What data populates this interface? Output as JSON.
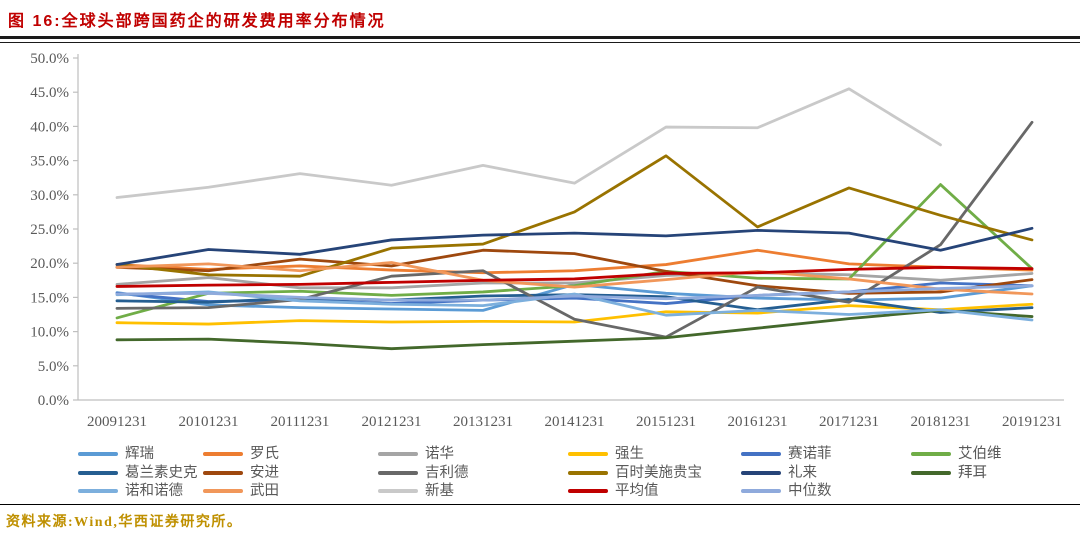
{
  "figure": {
    "title": "图 16:全球头部跨国药企的研发费用率分布情况"
  },
  "source": {
    "text": "资料来源:Wind,华西证券研究所。"
  },
  "colors": {
    "title": "#C00000",
    "source": "#BF9000",
    "axis": "#BFBFBF",
    "tick_label": "#595959",
    "rule": "#1a1a1a"
  },
  "chart_data": {
    "type": "line",
    "title": "全球头部跨国药企的研发费用率分布情况",
    "xlabel": "",
    "ylabel": "",
    "ylim": [
      0,
      50
    ],
    "y_tick_step": 5,
    "y_tick_format": "percent_1dp",
    "grid": false,
    "legend_position": "bottom",
    "x": [
      "20091231",
      "20101231",
      "20111231",
      "20121231",
      "20131231",
      "20141231",
      "20151231",
      "20161231",
      "20171231",
      "20181231",
      "20191231"
    ],
    "series": [
      {
        "name": "辉瑞",
        "color": "#5B9BD5",
        "values": [
          15.7,
          13.9,
          13.5,
          13.3,
          13.1,
          16.9,
          15.6,
          14.9,
          14.6,
          14.9,
          16.7
        ]
      },
      {
        "name": "罗氏",
        "color": "#ED7D31",
        "values": [
          19.8,
          19.1,
          19.6,
          19.0,
          18.6,
          18.9,
          19.8,
          21.9,
          19.9,
          19.4,
          19.0
        ]
      },
      {
        "name": "诺华",
        "color": "#A5A5A5",
        "values": [
          16.9,
          17.9,
          16.4,
          16.4,
          17.1,
          17.1,
          18.2,
          18.6,
          18.3,
          17.5,
          18.5
        ]
      },
      {
        "name": "强生",
        "color": "#FFC000",
        "values": [
          11.3,
          11.1,
          11.6,
          11.4,
          11.5,
          11.4,
          12.9,
          12.7,
          13.8,
          13.2,
          14.0
        ]
      },
      {
        "name": "赛诺菲",
        "color": "#4472C4",
        "values": [
          15.6,
          14.4,
          14.6,
          14.1,
          14.6,
          14.9,
          14.1,
          15.3,
          15.8,
          17.1,
          16.7
        ]
      },
      {
        "name": "艾伯维",
        "color": "#70AD47",
        "values": [
          12.0,
          15.6,
          15.9,
          15.3,
          15.8,
          16.7,
          18.8,
          17.8,
          17.7,
          31.5,
          19.2
        ]
      },
      {
        "name": "葛兰素史克",
        "color": "#255E91",
        "values": [
          14.5,
          14.3,
          14.9,
          14.6,
          15.2,
          15.4,
          15.1,
          13.2,
          14.7,
          12.8,
          13.5
        ]
      },
      {
        "name": "安进",
        "color": "#9E480E",
        "values": [
          19.4,
          18.9,
          20.6,
          19.6,
          21.9,
          21.4,
          18.8,
          16.7,
          15.6,
          15.8,
          17.6
        ]
      },
      {
        "name": "吉利德",
        "color": "#686868",
        "values": [
          13.4,
          13.5,
          14.7,
          18.1,
          18.9,
          11.8,
          9.2,
          16.5,
          14.3,
          22.7,
          40.6
        ]
      },
      {
        "name": "百时美施贵宝",
        "color": "#997300",
        "values": [
          19.8,
          18.3,
          18.1,
          22.2,
          22.8,
          27.5,
          35.7,
          25.3,
          31.0,
          27.0,
          23.4
        ]
      },
      {
        "name": "礼来",
        "color": "#264478",
        "values": [
          19.8,
          22.0,
          21.3,
          23.4,
          24.1,
          24.4,
          24.0,
          24.8,
          24.4,
          21.9,
          25.1
        ]
      },
      {
        "name": "拜耳",
        "color": "#43682B",
        "values": [
          8.8,
          8.9,
          8.3,
          7.5,
          8.1,
          8.6,
          9.1,
          10.5,
          11.9,
          13.1,
          12.2
        ]
      },
      {
        "name": "诺和诺德",
        "color": "#7CAFDD",
        "values": [
          15.4,
          15.8,
          14.5,
          14.0,
          13.8,
          15.5,
          12.4,
          13.1,
          12.5,
          13.2,
          11.7
        ]
      },
      {
        "name": "武田",
        "color": "#F1975A",
        "values": [
          19.4,
          19.9,
          18.9,
          20.1,
          17.5,
          16.5,
          17.6,
          18.8,
          17.7,
          16.2,
          15.5
        ]
      },
      {
        "name": "新基",
        "color": "#C9C9C9",
        "values": [
          29.6,
          31.1,
          33.1,
          31.4,
          34.3,
          31.7,
          39.9,
          39.8,
          45.5,
          37.3,
          null
        ]
      },
      {
        "name": "平均值",
        "color": "#C00000",
        "values": [
          16.6,
          16.8,
          16.9,
          17.2,
          17.5,
          17.7,
          18.5,
          18.6,
          19.1,
          19.4,
          19.2
        ]
      },
      {
        "name": "中位数",
        "color": "#8FAADC",
        "values": [
          15.5,
          15.6,
          15.0,
          14.6,
          14.6,
          15.2,
          14.8,
          15.3,
          15.8,
          16.3,
          16.7
        ]
      }
    ]
  }
}
